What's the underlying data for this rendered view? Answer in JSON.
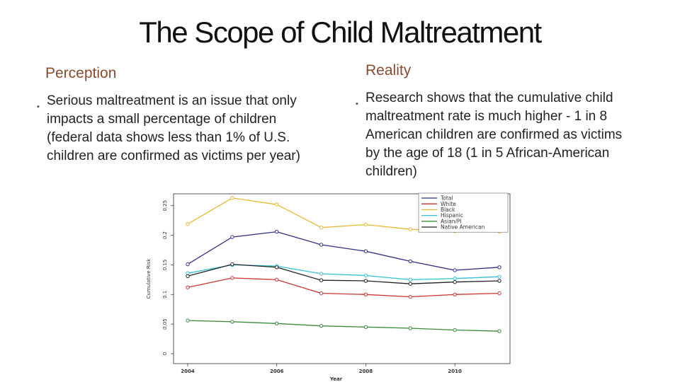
{
  "slide": {
    "title": "The Scope of Child Maltreatment",
    "perception": {
      "heading": "Perception",
      "bullet": "Serious maltreatment is an issue that only impacts a small percentage of children (federal data shows less than 1% of U.S. children are confirmed as victims per year)"
    },
    "reality": {
      "heading": "Reality",
      "bullet": "Research shows that the cumulative child maltreatment rate is much higher - 1 in 8 American children are confirmed as victims by the age of 18 (1 in 5 African-American children)"
    },
    "bullet_glyph": "▪"
  },
  "chart_data": {
    "type": "line",
    "xlabel": "Year",
    "ylabel": "Cumulative Risk",
    "x": [
      2004,
      2005,
      2006,
      2007,
      2008,
      2009,
      2010,
      2011
    ],
    "xticks": [
      2004,
      2006,
      2008,
      2010
    ],
    "ylim": [
      0,
      0.27
    ],
    "yticks": [
      "0",
      "0.05",
      "0.1",
      "0.15",
      "0.2",
      "0.25"
    ],
    "series": [
      {
        "name": "Total",
        "color": "#2e2e8a",
        "values": [
          0.151,
          0.197,
          0.206,
          0.184,
          0.173,
          0.156,
          0.141,
          0.146
        ]
      },
      {
        "name": "White",
        "color": "#cc3333",
        "values": [
          0.112,
          0.128,
          0.125,
          0.102,
          0.1,
          0.096,
          0.1,
          0.102
        ]
      },
      {
        "name": "Black",
        "color": "#e8b830",
        "values": [
          0.219,
          0.263,
          0.252,
          0.213,
          0.218,
          0.21,
          0.207,
          0.206
        ]
      },
      {
        "name": "Hispanic",
        "color": "#33c0d8",
        "values": [
          0.136,
          0.15,
          0.148,
          0.135,
          0.132,
          0.125,
          0.127,
          0.13
        ]
      },
      {
        "name": "Asian/PI",
        "color": "#3a8a3a",
        "values": [
          0.056,
          0.054,
          0.051,
          0.047,
          0.045,
          0.043,
          0.04,
          0.038
        ]
      },
      {
        "name": "Native American",
        "color": "#222222",
        "values": [
          0.131,
          0.151,
          0.146,
          0.124,
          0.123,
          0.118,
          0.121,
          0.123
        ]
      }
    ]
  }
}
